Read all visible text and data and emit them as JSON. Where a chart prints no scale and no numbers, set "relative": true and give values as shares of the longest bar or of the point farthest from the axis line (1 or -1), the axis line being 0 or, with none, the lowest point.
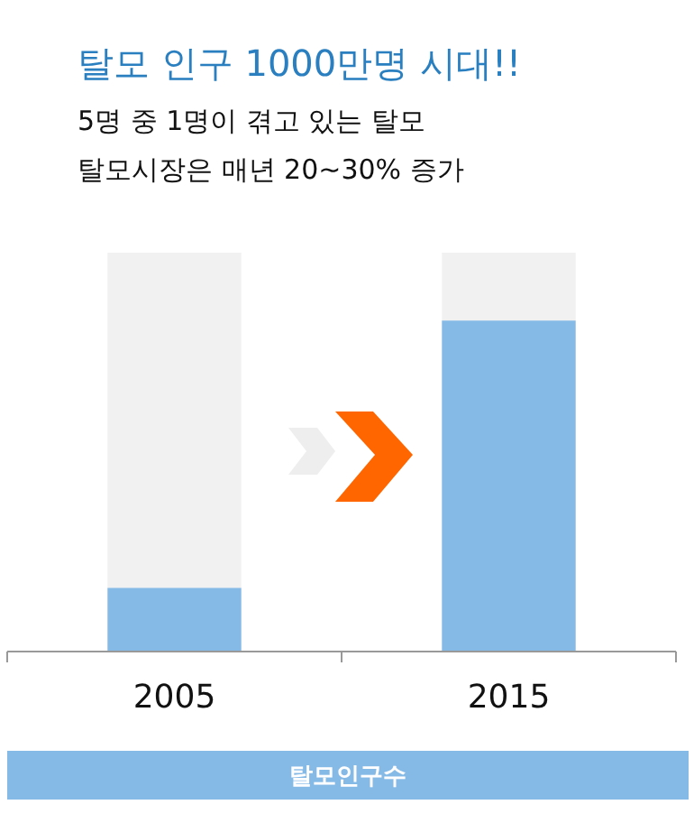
{
  "chart_data": {
    "type": "bar",
    "title": "탈모 인구 1000만명 시대!!",
    "subtitle": "5명 중 1명이 겪고 있는 탈모\n탈모시장은 매년 20~30% 증가",
    "xlabel": "탈모인구수",
    "categories": [
      "2005",
      "2015"
    ],
    "relative": true,
    "stacked": true,
    "series": [
      {
        "color": "#85b9e6",
        "values": [
          0.16,
          0.83
        ]
      },
      {
        "color": "#f1f1f1",
        "values": [
          0.84,
          0.17
        ]
      }
    ]
  }
}
